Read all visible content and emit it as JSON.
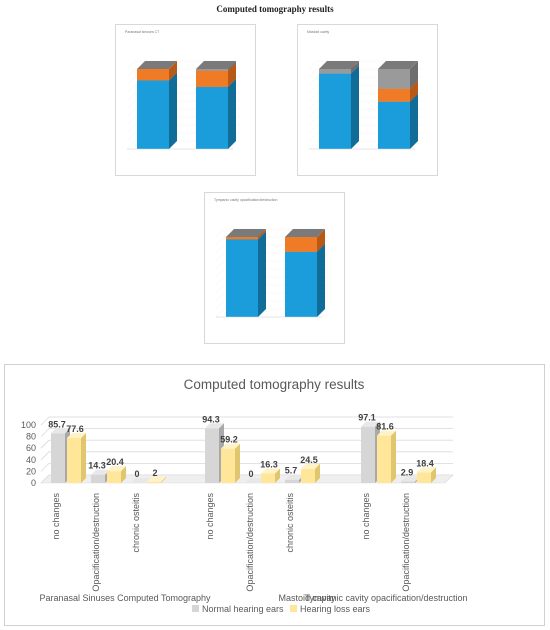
{
  "figure_title": "Computed tomography results",
  "colors": {
    "normal": "#d6d6d6",
    "normal_side": "#a9a9a9",
    "normal_top": "#e8e8e8",
    "loss": "#ffe699",
    "loss_side": "#e0c66e",
    "loss_top": "#fff2c6",
    "stack_blue": "#1b9ddb",
    "stack_blue_side": "#126c98",
    "stack_orange": "#f07b26",
    "stack_orange_side": "#b85a16",
    "stack_grey": "#9a9a9a",
    "stack_grey_side": "#6e6e6e",
    "stack_darkgrey": "#7a7a7a"
  },
  "thumbnails": {
    "paranasal": {
      "title": "Paranasal sinuses CT"
    },
    "mastoid": {
      "title": "Mastoid cavity"
    },
    "tympanic": {
      "title": "Tympanic cavity opacification/destruction"
    }
  },
  "chart_data": [
    {
      "type": "bar",
      "title": "Computed tomography results",
      "ylim": [
        0,
        100
      ],
      "yticks": [
        "0",
        "20",
        "40",
        "60",
        "80",
        "100"
      ],
      "groups": [
        {
          "name": "Paranasal Sinuses Computed Tomography",
          "categories": [
            "no changes",
            "Opacification/destruction",
            "chronic osteitis"
          ],
          "normal": [
            85.7,
            14.3,
            0
          ],
          "loss": [
            77.6,
            20.4,
            2
          ]
        },
        {
          "name": "Mastoid cavity",
          "categories": [
            "no changes",
            "Opacification/destruction",
            "chronic osteitis"
          ],
          "normal": [
            94.3,
            0,
            5.7
          ],
          "loss": [
            59.2,
            16.3,
            24.5
          ]
        },
        {
          "name": "Tympanic cavity opacification/destruction",
          "categories": [
            "no changes",
            "Opacification/destruction"
          ],
          "normal": [
            97.1,
            2.9
          ],
          "loss": [
            81.6,
            18.4
          ]
        }
      ],
      "normal_labels": [
        [
          "85.7",
          "14.3",
          "0"
        ],
        [
          "94.3",
          "0",
          "5.7"
        ],
        [
          "97.1",
          "2.9"
        ]
      ],
      "loss_labels": [
        [
          "77.6",
          "20.4",
          "2"
        ],
        [
          "59.2",
          "16.3",
          "24.5"
        ],
        [
          "81.6",
          "18.4"
        ]
      ],
      "legend": {
        "normal": "Normal hearing ears",
        "loss": "Hearing loss ears"
      },
      "grid": true,
      "legend_position": "bottom"
    },
    {
      "type": "bar",
      "title": "Paranasal sinuses CT",
      "stacked": true,
      "stacks": [
        [
          85.7,
          14.3,
          0
        ],
        [
          77.6,
          20.4,
          2
        ]
      ]
    },
    {
      "type": "bar",
      "title": "Mastoid cavity",
      "stacked": true,
      "stacks": [
        [
          94.3,
          0,
          5.7
        ],
        [
          59.2,
          16.3,
          24.5
        ]
      ]
    },
    {
      "type": "bar",
      "title": "Tympanic cavity opacification/destruction",
      "stacked": true,
      "stacks": [
        [
          97.1,
          2.9
        ],
        [
          81.6,
          18.4
        ]
      ]
    }
  ]
}
